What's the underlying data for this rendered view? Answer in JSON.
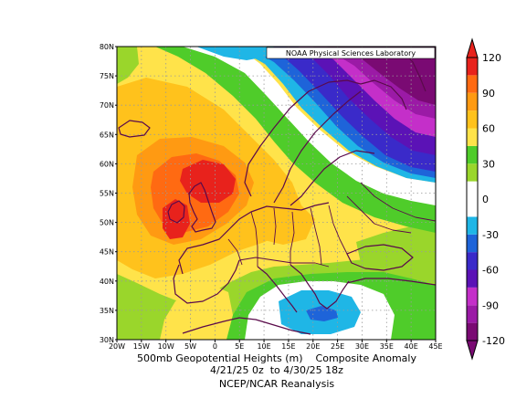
{
  "credit": "NOAA Physical Sciences Laboratory",
  "caption": {
    "line1": "500mb Geopotential Heights (m)    Composite Anomaly",
    "line2": "4/21/25 0z  to 4/30/25 18z",
    "line3": "NCEP/NCAR Reanalysis"
  },
  "chart_data": {
    "type": "heatmap",
    "lon_range": [
      -20,
      45
    ],
    "lat_range": [
      30,
      80
    ],
    "x_tick_labels": [
      "20W",
      "15W",
      "10W",
      "5W",
      "0",
      "5E",
      "10E",
      "15E",
      "20E",
      "25E",
      "30E",
      "35E",
      "40E",
      "45E"
    ],
    "y_tick_labels": [
      "30N",
      "35N",
      "40N",
      "45N",
      "50N",
      "55N",
      "60N",
      "65N",
      "70N",
      "75N",
      "80N"
    ],
    "colorbar": {
      "tick_labels": [
        "120",
        "90",
        "60",
        "30",
        "0",
        "-30",
        "-60",
        "-90",
        "-120"
      ],
      "levels": [
        -120,
        -105,
        -90,
        -75,
        -60,
        -45,
        -30,
        -15,
        15,
        30,
        45,
        60,
        75,
        90,
        105,
        120
      ],
      "colors": [
        "#7a0a73",
        "#9b1aa6",
        "#c42fc9",
        "#5b12b6",
        "#3a2ac9",
        "#1e64d9",
        "#1fb6e6",
        "#ffffff",
        "#9ad62b",
        "#4fcc2a",
        "#ffe34a",
        "#ffc21c",
        "#ff9a12",
        "#ff6a12",
        "#e8221c"
      ]
    },
    "anomaly_centers": [
      {
        "lon": 0,
        "lat": 56,
        "value": 120,
        "type": "positive"
      },
      {
        "lon": -5,
        "lat": 48,
        "value": 110,
        "type": "positive"
      },
      {
        "lon": 38,
        "lat": 73,
        "value": -120,
        "type": "negative"
      },
      {
        "lon": 24,
        "lat": 35,
        "value": -35,
        "type": "negative"
      }
    ],
    "grid": true
  },
  "map_data": {
    "projection": "equirectangular",
    "bounds": {
      "west": -20,
      "east": 45,
      "south": 30,
      "north": 80
    },
    "coastlines": true,
    "borders": true
  }
}
